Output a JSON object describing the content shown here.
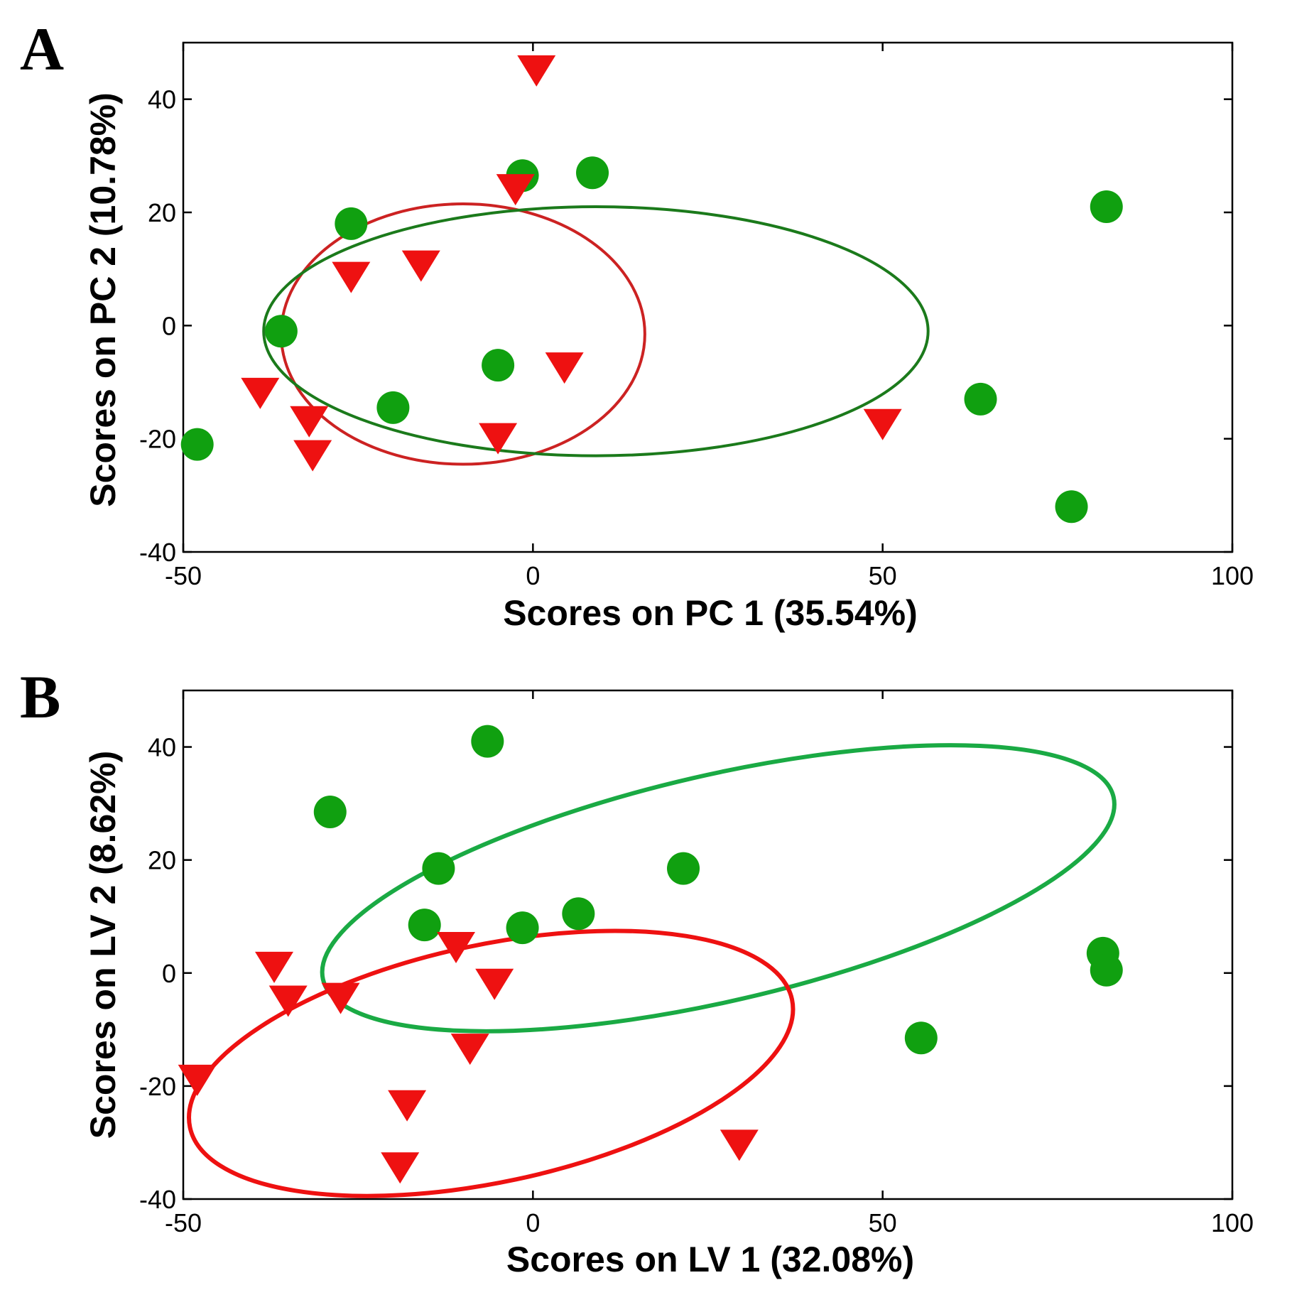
{
  "chart_data": [
    {
      "panel": "A",
      "type": "scatter",
      "xlabel": "Scores on PC 1 (35.54%)",
      "ylabel": "Scores on PC 2 (10.78%)",
      "xlim": [
        -50,
        100
      ],
      "ylim": [
        -40,
        50
      ],
      "xticks": [
        -50,
        0,
        50,
        100
      ],
      "yticks": [
        -40,
        -20,
        0,
        20,
        40
      ],
      "series": [
        {
          "name": "green group",
          "marker": "circle",
          "color": "#10a010",
          "points": [
            [
              -48,
              -21
            ],
            [
              -36,
              -1
            ],
            [
              -26,
              18
            ],
            [
              -20,
              -14.5
            ],
            [
              -5,
              -7
            ],
            [
              -1.5,
              26.5
            ],
            [
              8.5,
              27
            ],
            [
              64,
              -13
            ],
            [
              77,
              -32
            ],
            [
              82,
              21
            ]
          ]
        },
        {
          "name": "red group",
          "marker": "triangle-down",
          "color": "#ee1111",
          "points": [
            [
              0.5,
              45
            ],
            [
              -2.5,
              24
            ],
            [
              -26,
              8.5
            ],
            [
              -16,
              10.5
            ],
            [
              -39,
              -12
            ],
            [
              -32,
              -17
            ],
            [
              -31.5,
              -23
            ],
            [
              -5,
              -20
            ],
            [
              4.5,
              -7.5
            ],
            [
              50,
              -17.5
            ]
          ]
        }
      ],
      "ellipses": [
        {
          "color": "#cc2222",
          "cx": -10,
          "cy": -1.5,
          "rx": 26,
          "ry": 23,
          "angle": 0
        },
        {
          "color": "#1b7a1b",
          "cx": 9,
          "cy": -1,
          "rx": 47.5,
          "ry": 22,
          "angle": 0
        }
      ]
    },
    {
      "panel": "B",
      "type": "scatter",
      "xlabel": "Scores on LV 1 (32.08%)",
      "ylabel": "Scores on LV 2 (8.62%)",
      "xlim": [
        -50,
        100
      ],
      "ylim": [
        -40,
        50
      ],
      "xticks": [
        -50,
        0,
        50,
        100
      ],
      "yticks": [
        -40,
        -20,
        0,
        20,
        40
      ],
      "series": [
        {
          "name": "green group",
          "marker": "circle",
          "color": "#10a010",
          "points": [
            [
              -6.5,
              41
            ],
            [
              -29,
              28.5
            ],
            [
              -13.5,
              18.5
            ],
            [
              21.5,
              18.5
            ],
            [
              -15.5,
              8.5
            ],
            [
              -1.5,
              8
            ],
            [
              6.5,
              10.5
            ],
            [
              81.5,
              3.5
            ],
            [
              82,
              0.5
            ],
            [
              55.5,
              -11.5
            ]
          ]
        },
        {
          "name": "red group",
          "marker": "triangle-down",
          "color": "#ee1111",
          "points": [
            [
              -37,
              1
            ],
            [
              -11,
              4.5
            ],
            [
              -5.5,
              -2
            ],
            [
              -35,
              -5
            ],
            [
              -27.5,
              -4.5
            ],
            [
              -9,
              -13.5
            ],
            [
              -48,
              -19
            ],
            [
              -18,
              -23.5
            ],
            [
              -19,
              -34.5
            ],
            [
              29.5,
              -30.5
            ]
          ]
        }
      ],
      "ellipses": [
        {
          "color": "#1aaa44",
          "cx": 26.5,
          "cy": 15,
          "rx": 58,
          "ry": 20,
          "angle": -13
        },
        {
          "color": "#ee1111",
          "cx": -6,
          "cy": -16,
          "rx": 44,
          "ry": 21,
          "angle": -12
        }
      ]
    }
  ]
}
